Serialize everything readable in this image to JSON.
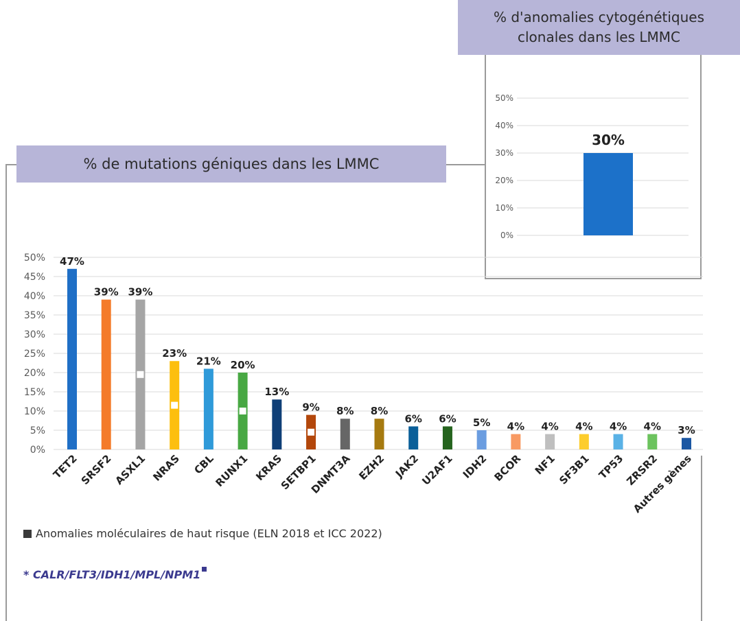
{
  "main_title": "% de mutations géniques dans les LMMC",
  "inset_title": "% d'anomalies cytogénétiques clonales dans les LMMC",
  "legend_text": "Anomalies moléculaires de haut risque (ELN 2018 et ICC 2022)",
  "footnote_text": "* CALR/FLT3/IDH1/MPL/NPM1",
  "colors": {
    "title_bg": "#b7b5d8",
    "footnote": "#3b3a8f",
    "high_risk_marker": "#ffffff"
  },
  "chart_data": [
    {
      "type": "bar",
      "title": "% de mutations géniques dans les LMMC",
      "categories": [
        "TET2",
        "SRSF2",
        "ASXL1",
        "NRAS",
        "CBL",
        "RUNX1",
        "KRAS",
        "SETBP1",
        "DNMT3A",
        "EZH2",
        "JAK2",
        "U2AF1",
        "IDH2",
        "BCOR",
        "NF1",
        "SF3B1",
        "TP53",
        "ZRSR2",
        "Autres gènes"
      ],
      "values": [
        47,
        39,
        39,
        23,
        21,
        20,
        13,
        9,
        8,
        8,
        6,
        6,
        5,
        4,
        4,
        4,
        4,
        4,
        3
      ],
      "labels": [
        "47%",
        "39%",
        "39%",
        "23%",
        "21%",
        "20%",
        "13%",
        "9%",
        "8%",
        "8%",
        "6%",
        "6%",
        "5%",
        "4%",
        "4%",
        "4%",
        "4%",
        "4%",
        "3%"
      ],
      "bar_colors": [
        "#1f6fc6",
        "#f47b2a",
        "#a5a5a5",
        "#fdbf0f",
        "#2f9ad9",
        "#48a843",
        "#0f3f77",
        "#b3470b",
        "#666666",
        "#a67a10",
        "#0a5f99",
        "#25641e",
        "#6b9de0",
        "#f89a63",
        "#bfbfbf",
        "#fdcd2c",
        "#5ab2e6",
        "#6cc35e",
        "#1b57a3"
      ],
      "high_risk": [
        "ASXL1",
        "NRAS",
        "RUNX1",
        "SETBP1"
      ],
      "y_ticks": [
        "0%",
        "5%",
        "10%",
        "15%",
        "20%",
        "25%",
        "30%",
        "35%",
        "40%",
        "45%",
        "50%"
      ],
      "ylim": [
        0,
        50
      ],
      "grid": true
    },
    {
      "type": "bar",
      "title": "% d'anomalies cytogénétiques clonales dans les LMMC",
      "categories": [
        ""
      ],
      "values": [
        30
      ],
      "labels": [
        "30%"
      ],
      "bar_colors": [
        "#1c71c9"
      ],
      "y_ticks": [
        "0%",
        "10%",
        "20%",
        "30%",
        "40%",
        "50%"
      ],
      "ylim": [
        0,
        50
      ],
      "grid": true
    }
  ]
}
